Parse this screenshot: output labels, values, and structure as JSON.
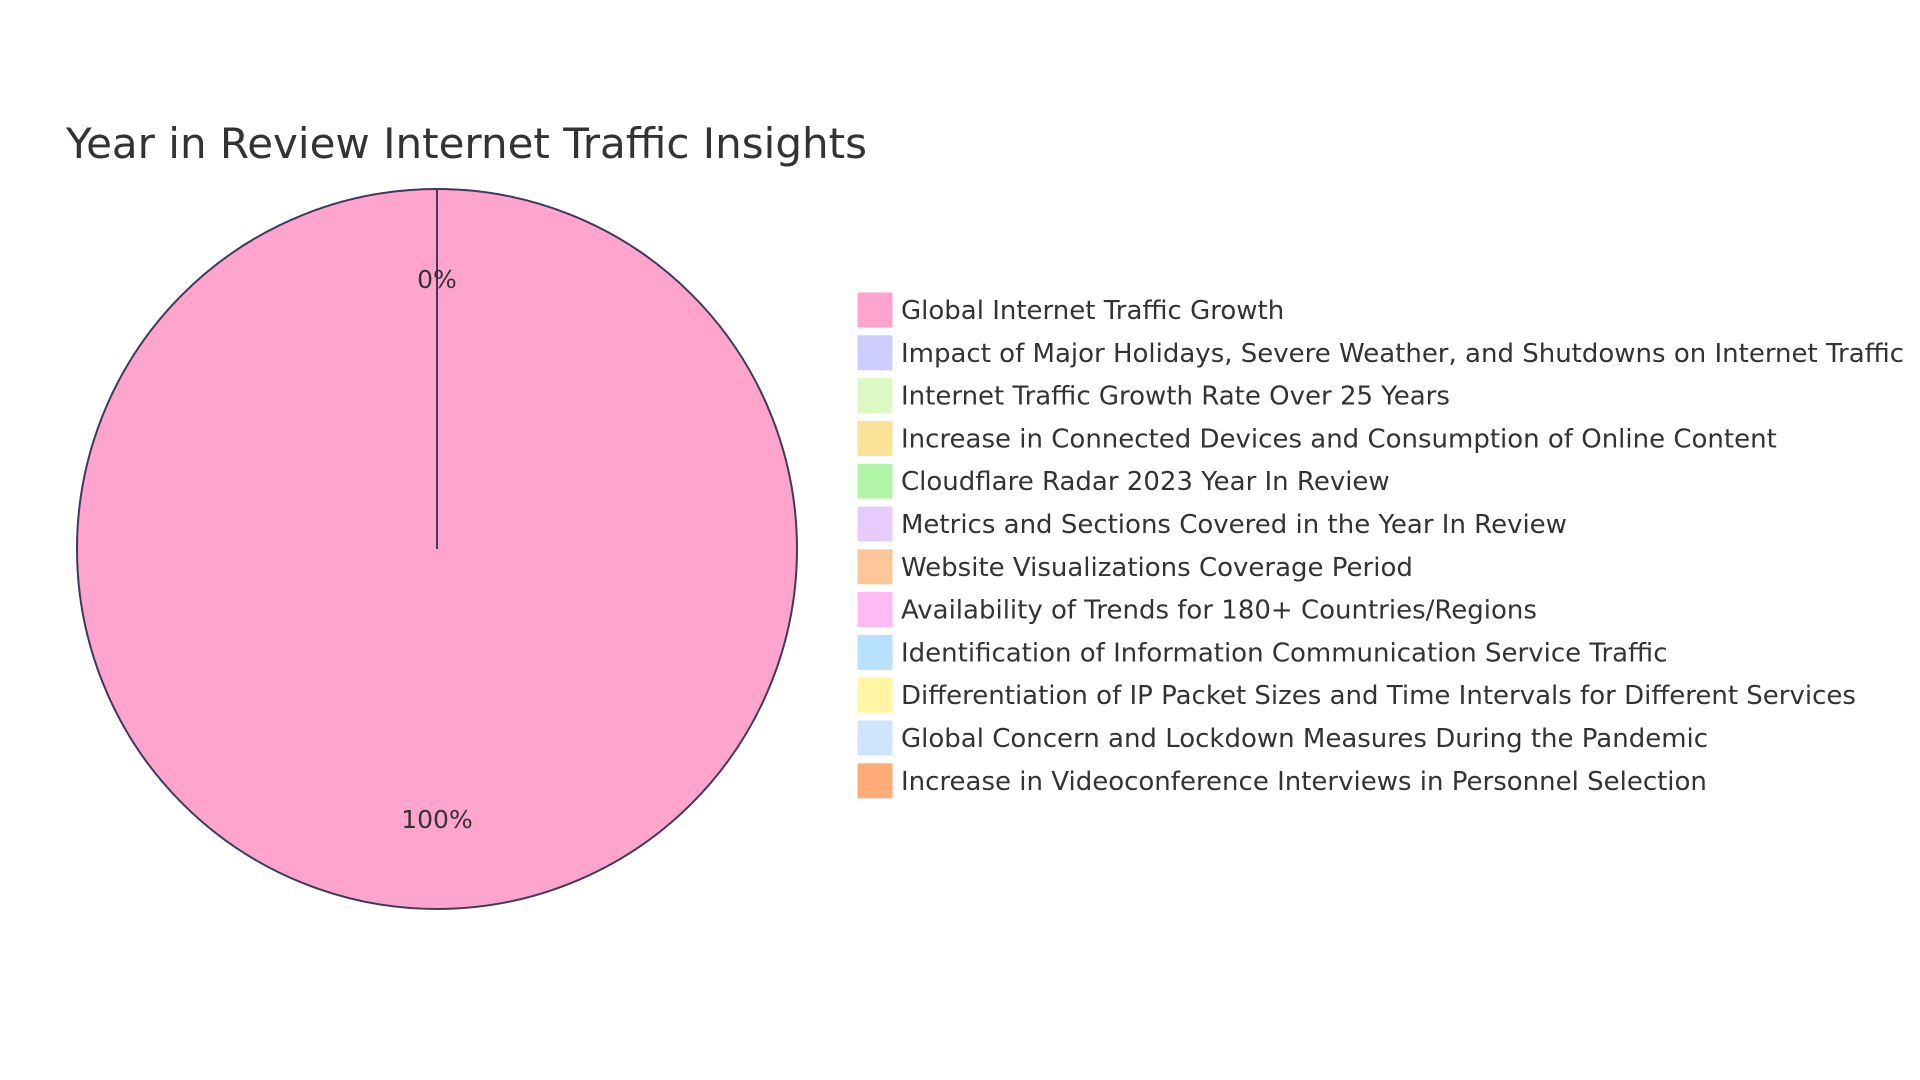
{
  "chart_data": {
    "type": "pie",
    "title": "Year in Review Internet Traffic Insights",
    "series": [
      {
        "name": "Global Internet Traffic Growth",
        "value": 100,
        "label": "100%",
        "color": "#ffa3cf"
      },
      {
        "name": "Impact of Major Holidays, Severe Weather, and Shutdowns on Internet Traffic",
        "value": 0,
        "label": "0%",
        "color": "#cdcdff"
      },
      {
        "name": "Internet Traffic Growth Rate Over 25 Years",
        "value": 0,
        "label": "0%",
        "color": "#dcf9c4"
      },
      {
        "name": "Increase in Connected Devices and Consumption of Online Content",
        "value": 0,
        "label": "0%",
        "color": "#fde29a"
      },
      {
        "name": "Cloudflare Radar 2023 Year In Review",
        "value": 0,
        "label": "0%",
        "color": "#b3f5a8"
      },
      {
        "name": "Metrics and Sections Covered in the Year In Review",
        "value": 0,
        "label": "0%",
        "color": "#e8cbff"
      },
      {
        "name": "Website Visualizations Coverage Period",
        "value": 0,
        "label": "0%",
        "color": "#fec799"
      },
      {
        "name": "Availability of Trends for 180+ Countries/Regions",
        "value": 0,
        "label": "0%",
        "color": "#ffbaf3"
      },
      {
        "name": "Identification of Information Communication Service Traffic",
        "value": 0,
        "label": "0%",
        "color": "#b7e1ff"
      },
      {
        "name": "Differentiation of IP Packet Sizes and Time Intervals for Different Services",
        "value": 0,
        "label": "0%",
        "color": "#fff5a3"
      },
      {
        "name": "Global Concern and Lockdown Measures During the Pandemic",
        "value": 0,
        "label": "0%",
        "color": "#cfe4fd"
      },
      {
        "name": "Increase in Videoconference Interviews in Personnel Selection",
        "value": 0,
        "label": "0%",
        "color": "#ffab77"
      }
    ],
    "legend_position": "right"
  },
  "style": {
    "stroke_color": "#3e3a5b",
    "text_color": "#333333"
  }
}
